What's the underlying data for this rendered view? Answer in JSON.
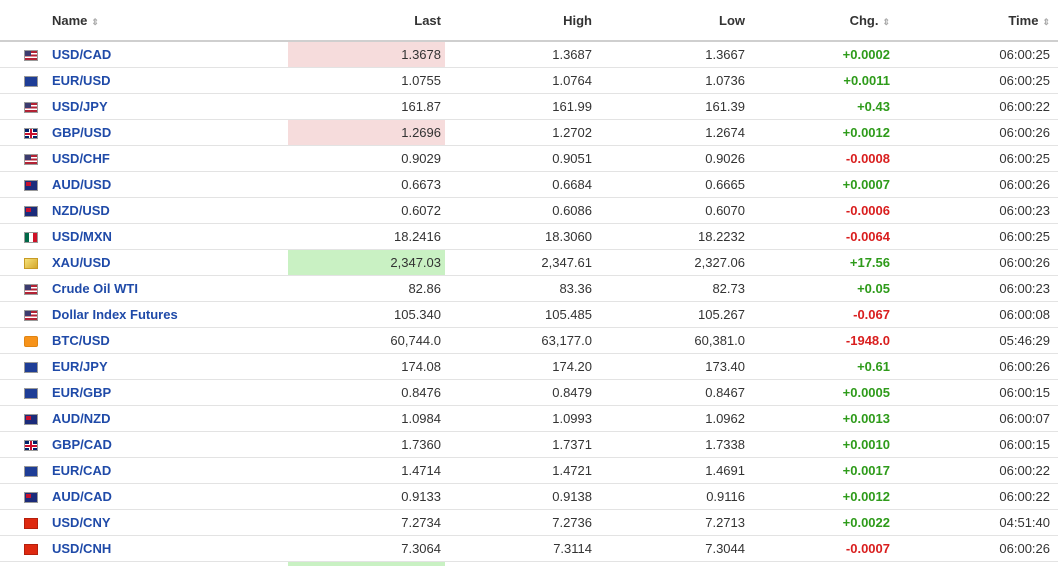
{
  "headers": {
    "name": "Name",
    "last": "Last",
    "high": "High",
    "low": "Low",
    "chg": "Chg.",
    "time": "Time",
    "sort_glyph": "⇕"
  },
  "rows": [
    {
      "flag": "flag-us",
      "name": "USD/CAD",
      "last": "1.3678",
      "high": "1.3687",
      "low": "1.3667",
      "chg": "+0.0002",
      "dir": "up",
      "time": "06:00:25",
      "hl": "red"
    },
    {
      "flag": "flag-eu",
      "name": "EUR/USD",
      "last": "1.0755",
      "high": "1.0764",
      "low": "1.0736",
      "chg": "+0.0011",
      "dir": "up",
      "time": "06:00:25",
      "hl": ""
    },
    {
      "flag": "flag-us",
      "name": "USD/JPY",
      "last": "161.87",
      "high": "161.99",
      "low": "161.39",
      "chg": "+0.43",
      "dir": "up",
      "time": "06:00:22",
      "hl": ""
    },
    {
      "flag": "flag-gb",
      "name": "GBP/USD",
      "last": "1.2696",
      "high": "1.2702",
      "low": "1.2674",
      "chg": "+0.0012",
      "dir": "up",
      "time": "06:00:26",
      "hl": "red"
    },
    {
      "flag": "flag-us",
      "name": "USD/CHF",
      "last": "0.9029",
      "high": "0.9051",
      "low": "0.9026",
      "chg": "-0.0008",
      "dir": "down",
      "time": "06:00:25",
      "hl": ""
    },
    {
      "flag": "flag-au",
      "name": "AUD/USD",
      "last": "0.6673",
      "high": "0.6684",
      "low": "0.6665",
      "chg": "+0.0007",
      "dir": "up",
      "time": "06:00:26",
      "hl": ""
    },
    {
      "flag": "flag-nz",
      "name": "NZD/USD",
      "last": "0.6072",
      "high": "0.6086",
      "low": "0.6070",
      "chg": "-0.0006",
      "dir": "down",
      "time": "06:00:23",
      "hl": ""
    },
    {
      "flag": "flag-mx",
      "name": "USD/MXN",
      "last": "18.2416",
      "high": "18.3060",
      "low": "18.2232",
      "chg": "-0.0064",
      "dir": "down",
      "time": "06:00:25",
      "hl": ""
    },
    {
      "flag": "flag-gold",
      "name": "XAU/USD",
      "last": "2,347.03",
      "high": "2,347.61",
      "low": "2,327.06",
      "chg": "+17.56",
      "dir": "up",
      "time": "06:00:26",
      "hl": "green"
    },
    {
      "flag": "flag-us",
      "name": "Crude Oil WTI",
      "last": "82.86",
      "high": "83.36",
      "low": "82.73",
      "chg": "+0.05",
      "dir": "up",
      "time": "06:00:23",
      "hl": ""
    },
    {
      "flag": "flag-us",
      "name": "Dollar Index Futures",
      "last": "105.340",
      "high": "105.485",
      "low": "105.267",
      "chg": "-0.067",
      "dir": "down",
      "time": "06:00:08",
      "hl": ""
    },
    {
      "flag": "flag-btc",
      "name": "BTC/USD",
      "last": "60,744.0",
      "high": "63,177.0",
      "low": "60,381.0",
      "chg": "-1948.0",
      "dir": "down",
      "time": "05:46:29",
      "hl": ""
    },
    {
      "flag": "flag-eu",
      "name": "EUR/JPY",
      "last": "174.08",
      "high": "174.20",
      "low": "173.40",
      "chg": "+0.61",
      "dir": "up",
      "time": "06:00:26",
      "hl": ""
    },
    {
      "flag": "flag-eu",
      "name": "EUR/GBP",
      "last": "0.8476",
      "high": "0.8479",
      "low": "0.8467",
      "chg": "+0.0005",
      "dir": "up",
      "time": "06:00:15",
      "hl": ""
    },
    {
      "flag": "flag-au",
      "name": "AUD/NZD",
      "last": "1.0984",
      "high": "1.0993",
      "low": "1.0962",
      "chg": "+0.0013",
      "dir": "up",
      "time": "06:00:07",
      "hl": ""
    },
    {
      "flag": "flag-gb",
      "name": "GBP/CAD",
      "last": "1.7360",
      "high": "1.7371",
      "low": "1.7338",
      "chg": "+0.0010",
      "dir": "up",
      "time": "06:00:15",
      "hl": ""
    },
    {
      "flag": "flag-eu",
      "name": "EUR/CAD",
      "last": "1.4714",
      "high": "1.4721",
      "low": "1.4691",
      "chg": "+0.0017",
      "dir": "up",
      "time": "06:00:22",
      "hl": ""
    },
    {
      "flag": "flag-au",
      "name": "AUD/CAD",
      "last": "0.9133",
      "high": "0.9138",
      "low": "0.9116",
      "chg": "+0.0012",
      "dir": "up",
      "time": "06:00:22",
      "hl": ""
    },
    {
      "flag": "flag-cn",
      "name": "USD/CNY",
      "last": "7.2734",
      "high": "7.2736",
      "low": "7.2713",
      "chg": "+0.0022",
      "dir": "up",
      "time": "04:51:40",
      "hl": ""
    },
    {
      "flag": "flag-cn",
      "name": "USD/CNH",
      "last": "7.3064",
      "high": "7.3114",
      "low": "7.3044",
      "chg": "-0.0007",
      "dir": "down",
      "time": "06:00:26",
      "hl": ""
    }
  ],
  "partial_row_hl": "green"
}
